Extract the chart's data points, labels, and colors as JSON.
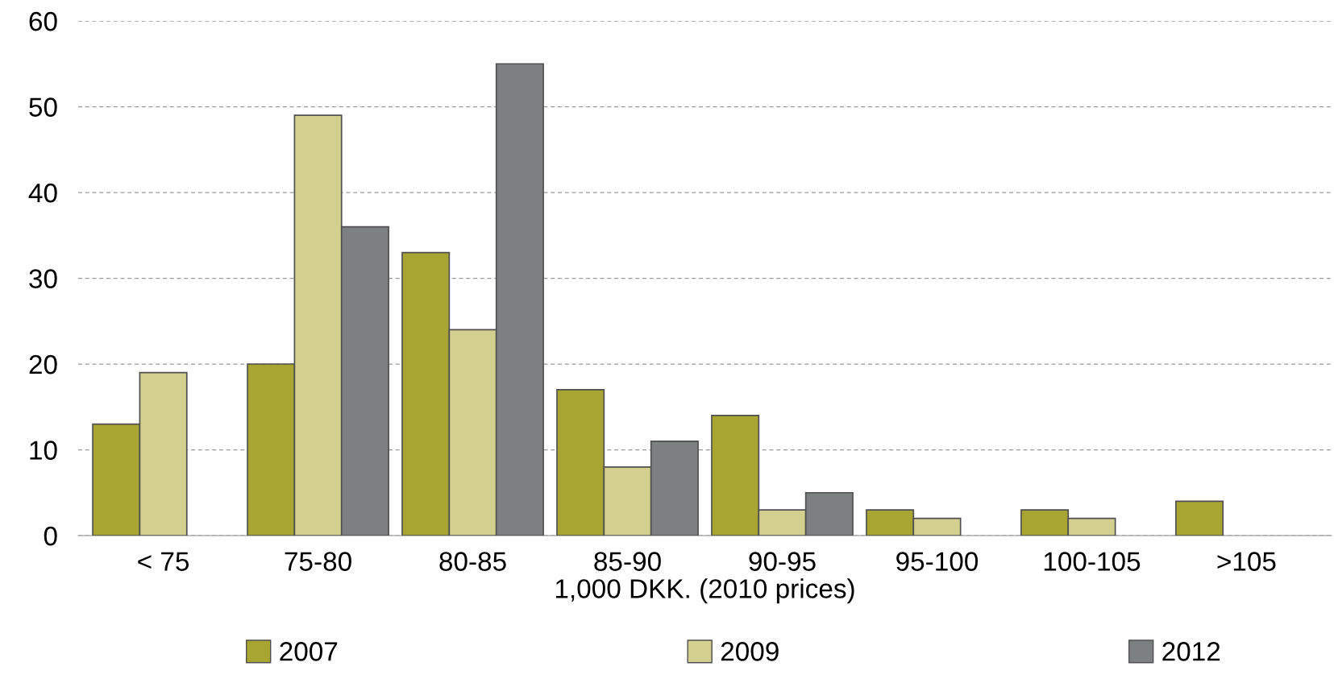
{
  "chart_data": {
    "type": "bar",
    "xlabel": "1,000 DKK. (2010 prices)",
    "categories": [
      "< 75",
      "75-80",
      "80-85",
      "85-90",
      "90-95",
      "95-100",
      "100-105",
      ">105"
    ],
    "series": [
      {
        "name": "2007",
        "color": "#a9a533",
        "values": [
          13,
          20,
          33,
          17,
          14,
          3,
          3,
          4
        ]
      },
      {
        "name": "2009",
        "color": "#d3cf8f",
        "values": [
          19,
          49,
          24,
          8,
          3,
          2,
          2,
          null
        ]
      },
      {
        "name": "2012",
        "color": "#7d8080",
        "values": [
          null,
          36,
          55,
          11,
          5,
          null,
          null,
          null
        ]
      }
    ],
    "ylim": [
      0,
      60
    ],
    "yticks": [
      0,
      10,
      20,
      30,
      40,
      50,
      60
    ],
    "grid": "y",
    "legend": "bottom"
  }
}
